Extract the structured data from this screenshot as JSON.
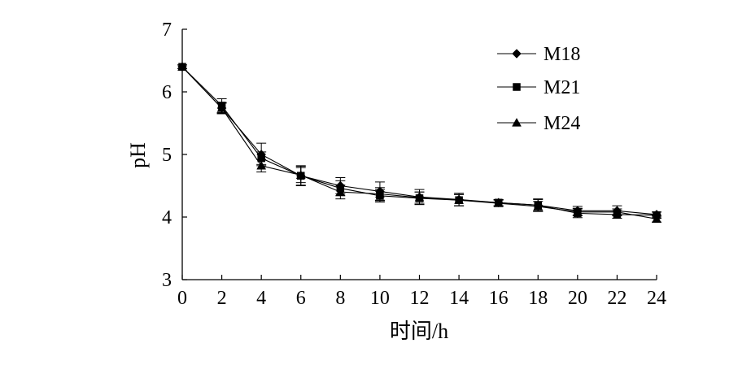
{
  "chart_data": {
    "type": "line",
    "title": "",
    "xlabel": "时间/h",
    "ylabel": "pH",
    "x": [
      0,
      2,
      4,
      6,
      8,
      10,
      12,
      14,
      16,
      18,
      20,
      22,
      24
    ],
    "xlim": [
      0,
      24
    ],
    "ylim": [
      3,
      7
    ],
    "x_ticks": [
      "0",
      "2",
      "4",
      "6",
      "8",
      "10",
      "12",
      "14",
      "16",
      "18",
      "20",
      "22",
      "24"
    ],
    "y_ticks": [
      "3",
      "4",
      "5",
      "6",
      "7"
    ],
    "grid": false,
    "legend_position": "top-right",
    "series": [
      {
        "name": "M18",
        "marker": "diamond",
        "values": [
          6.4,
          5.74,
          5.0,
          4.66,
          4.5,
          4.41,
          4.32,
          4.28,
          4.23,
          4.19,
          4.1,
          4.1,
          4.04
        ],
        "errors": [
          0.03,
          0.09,
          0.18,
          0.15,
          0.13,
          0.15,
          0.12,
          0.1,
          0.05,
          0.09,
          0.07,
          0.08,
          0.04
        ]
      },
      {
        "name": "M21",
        "marker": "square",
        "values": [
          6.4,
          5.78,
          4.94,
          4.66,
          4.46,
          4.34,
          4.3,
          4.27,
          4.23,
          4.19,
          4.06,
          4.04,
          4.03
        ],
        "errors": [
          0.03,
          0.11,
          0.1,
          0.16,
          0.12,
          0.1,
          0.1,
          0.09,
          0.05,
          0.1,
          0.07,
          0.06,
          0.05
        ]
      },
      {
        "name": "M24",
        "marker": "triangle",
        "values": [
          6.4,
          5.74,
          4.82,
          4.67,
          4.4,
          4.37,
          4.31,
          4.27,
          4.22,
          4.17,
          4.08,
          4.08,
          3.97
        ],
        "errors": [
          0.03,
          0.08,
          0.1,
          0.12,
          0.11,
          0.1,
          0.09,
          0.09,
          0.05,
          0.08,
          0.06,
          0.05,
          0.05
        ]
      }
    ]
  }
}
